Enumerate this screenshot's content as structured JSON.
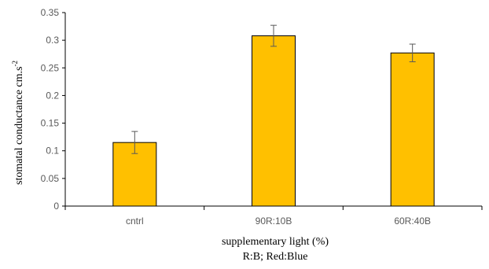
{
  "chart_data": {
    "type": "bar",
    "categories": [
      "cntrl",
      "90R:10B",
      "60R:40B"
    ],
    "values": [
      0.115,
      0.308,
      0.277
    ],
    "errors": [
      0.02,
      0.019,
      0.016
    ],
    "ylim": [
      0,
      0.35
    ],
    "yticks": [
      0,
      0.05,
      0.1,
      0.15,
      0.2,
      0.25,
      0.3,
      0.35
    ],
    "ytick_labels": [
      "0",
      "0.05",
      "0.1",
      "0.15",
      "0.2",
      "0.25",
      "0.3",
      "0.35"
    ],
    "ylabel": "stomatal conductance  cm.s",
    "ylabel_superscript": "-2",
    "xlabel": "supplementary light (%)",
    "xlabel_line2": "R:B; Red:Blue",
    "grid": false,
    "bar_color": "#FFC000",
    "bar_edge_color": "#000000",
    "axis_color": "#000000",
    "errorbar_color": "#595959"
  }
}
